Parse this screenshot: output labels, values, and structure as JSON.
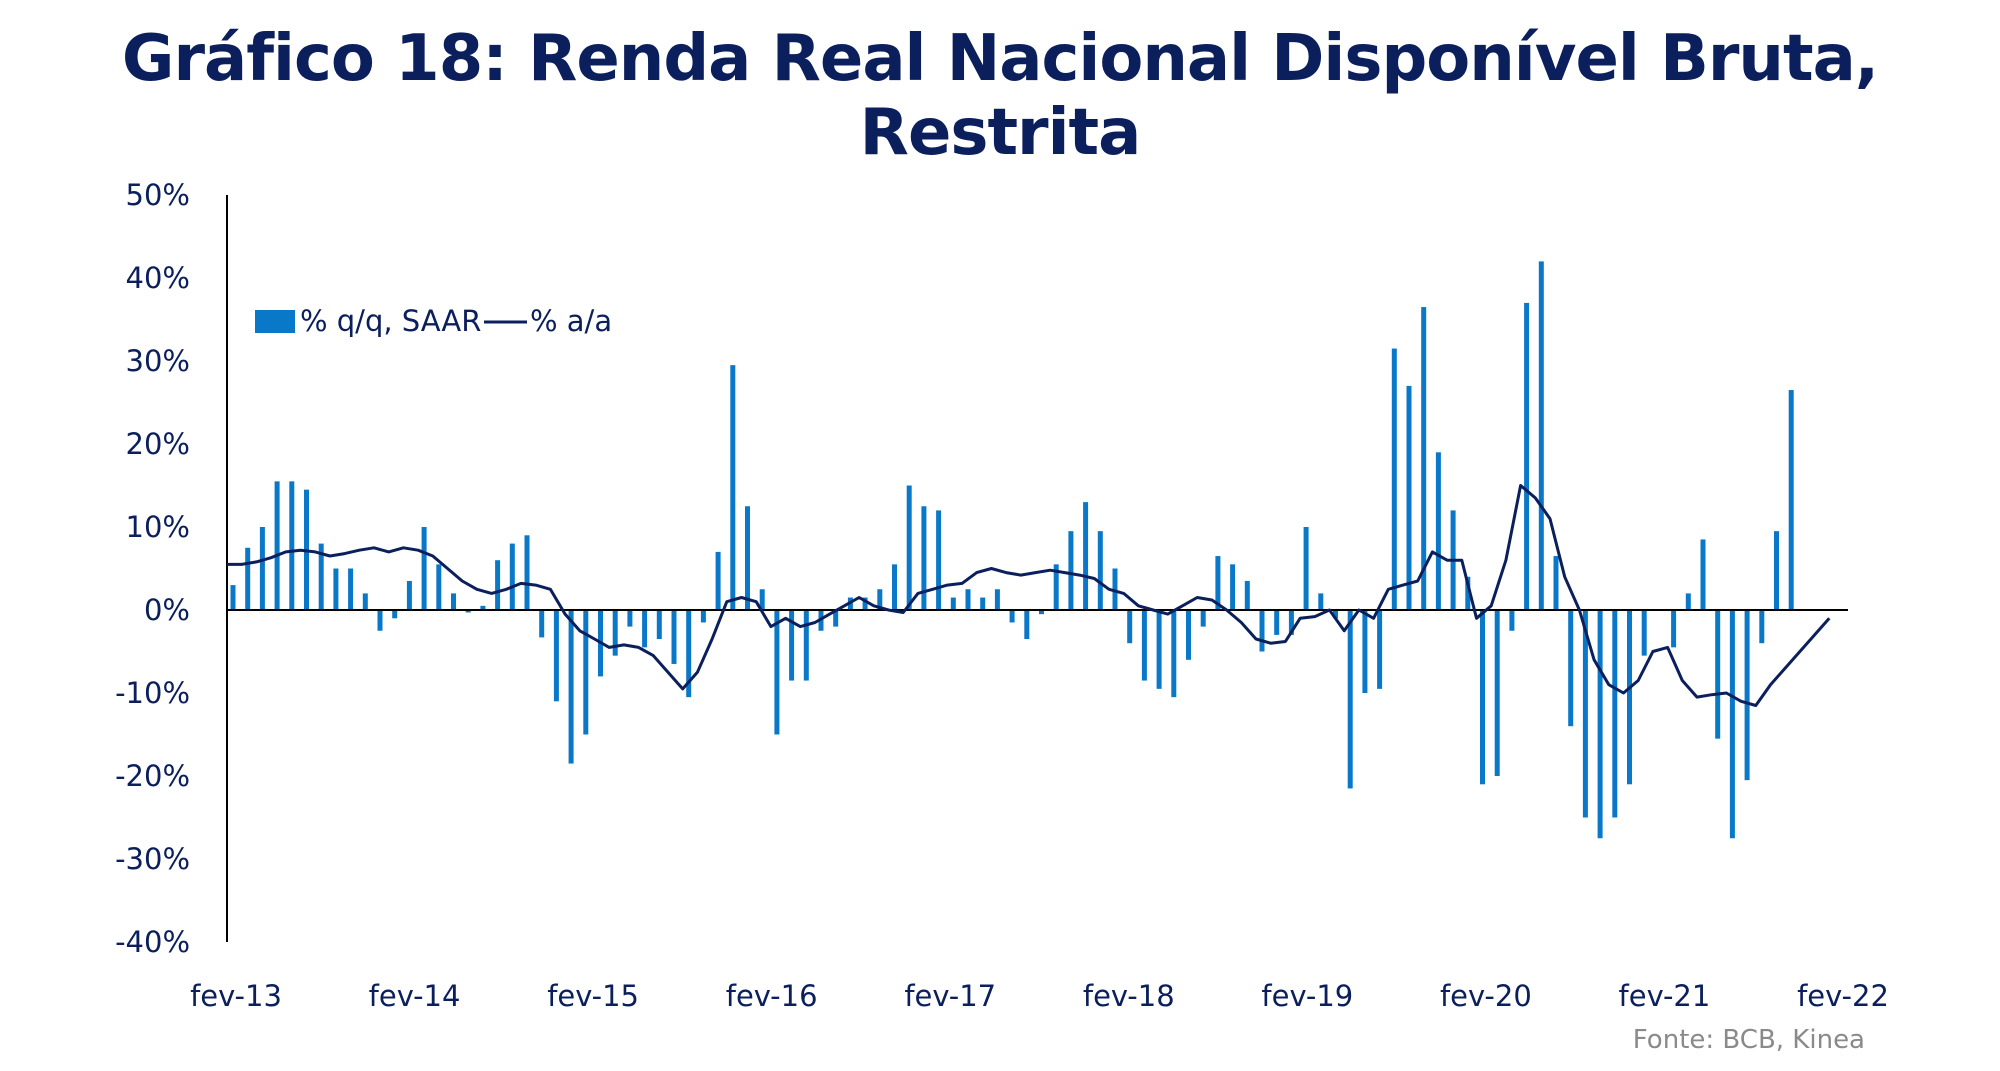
{
  "colors": {
    "bars": "#0a78c8",
    "line": "#0b1f5c",
    "axis": "#000000",
    "text": "#0b1f5c",
    "source": "#8a8a8a"
  },
  "chart_data": {
    "type": "bar+line",
    "title": "Gráfico 18: Renda Real Nacional Disponível Bruta, Restrita",
    "xlabel": "",
    "ylabel": "",
    "ylim": [
      -40,
      50
    ],
    "ytick_values": [
      -40,
      -30,
      -20,
      -10,
      0,
      10,
      20,
      30,
      40,
      50
    ],
    "ytick_labels": [
      "-40%",
      "-30%",
      "-20%",
      "-10%",
      "0%",
      "10%",
      "20%",
      "30%",
      "40%",
      "50%"
    ],
    "xtick_labels": [
      "fev-13",
      "fev-14",
      "fev-15",
      "fev-16",
      "fev-17",
      "fev-18",
      "fev-19",
      "fev-20",
      "fev-21",
      "fev-22"
    ],
    "x_start": "fev-13",
    "x_end": "fev-22",
    "legend_placement": "top-left",
    "grid": false,
    "source": "Fonte: BCB, Kinea",
    "series": [
      {
        "name": "% q/q, SAAR",
        "type": "bar",
        "values": [
          3,
          7.5,
          10,
          15.5,
          15.5,
          14.5,
          8,
          5,
          5,
          2,
          -2.5,
          -1,
          3.5,
          10,
          5.5,
          2,
          -0.3,
          0.5,
          6,
          8,
          9,
          -3.3,
          -11,
          -18.5,
          -15,
          -8,
          -5.5,
          -2,
          -4.5,
          -3.5,
          -6.5,
          -10.5,
          -1.5,
          7,
          29.5,
          12.5,
          2.5,
          -15,
          -8.5,
          -8.5,
          -2.5,
          -2,
          1.5,
          1.5,
          2.5,
          5.5,
          15,
          12.5,
          12,
          1.5,
          2.5,
          1.5,
          2.5,
          -1.5,
          -3.5,
          -0.5,
          5.5,
          9.5,
          13,
          9.5,
          5,
          -4,
          -8.5,
          -9.5,
          -10.5,
          -6,
          -2,
          6.5,
          5.5,
          3.5,
          -5,
          -3,
          -3,
          10,
          2,
          -1,
          -21.5,
          -10,
          -9.5,
          31.5,
          27,
          36.5,
          19,
          12,
          4,
          -21,
          -20,
          -2.5,
          37,
          42,
          6.5,
          -14,
          -25,
          -27.5,
          -25,
          -21,
          -5.5,
          0,
          -4.5,
          2,
          8.5,
          -15.5,
          -27.5,
          -20.5,
          -4,
          9.5,
          26.5
        ]
      },
      {
        "name": "% a/a",
        "type": "line",
        "values": [
          5.5,
          5.5,
          5.8,
          6.3,
          7,
          7.2,
          7,
          6.5,
          6.8,
          7.2,
          7.5,
          7,
          7.5,
          7.2,
          6.5,
          5,
          3.5,
          2.5,
          2,
          2.5,
          3.2,
          3,
          2.5,
          -0.5,
          -2.5,
          -3.5,
          -4.5,
          -4.2,
          -4.5,
          -5.5,
          -7.5,
          -9.5,
          -7.5,
          -3.5,
          1,
          1.5,
          1,
          -2,
          -1,
          -2,
          -1.5,
          -0.5,
          0.5,
          1.5,
          0.5,
          0,
          -0.3,
          2,
          2.5,
          3,
          3.2,
          4.5,
          5,
          4.5,
          4.2,
          4.5,
          4.8,
          4.5,
          4.2,
          3.8,
          2.5,
          2,
          0.5,
          0,
          -0.5,
          0.5,
          1.5,
          1.2,
          0,
          -1.5,
          -3.5,
          -4,
          -3.8,
          -1,
          -0.8,
          0,
          -2.5,
          0,
          -1,
          2.5,
          3,
          3.5,
          7,
          6,
          6,
          -1,
          0.5,
          6,
          15,
          13.5,
          11,
          4,
          0,
          -6,
          -9,
          -10,
          -8.5,
          -5,
          -4.5,
          -8.5,
          -10.5,
          -10.2,
          -10,
          -11,
          -11.5,
          -9,
          -7,
          -5,
          -3,
          -1
        ]
      }
    ]
  }
}
